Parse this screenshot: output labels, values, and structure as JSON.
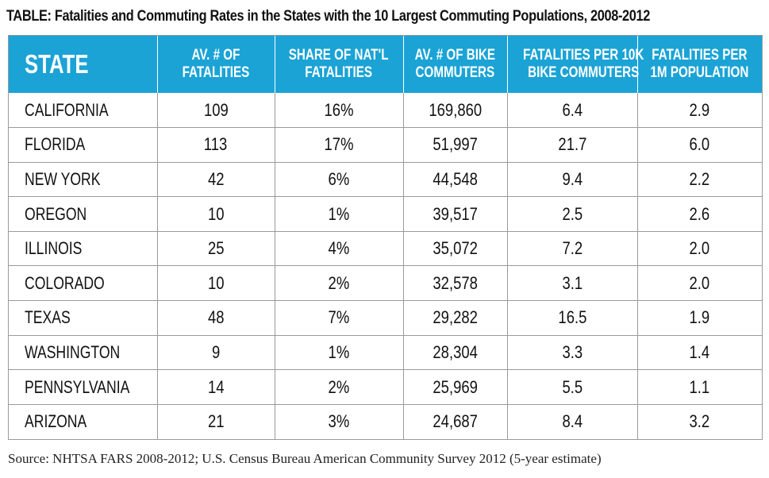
{
  "title": "TABLE: Fatalities and Commuting Rates in the States with the 10 Largest Commuting Populations, 2008-2012",
  "table": {
    "headers": [
      [
        "STATE"
      ],
      [
        "AV. # OF",
        "FATALITIES"
      ],
      [
        "SHARE OF NAT'L",
        "FATALITIES"
      ],
      [
        "AV. # OF BIKE",
        "COMMUTERS"
      ],
      [
        "FATALITIES PER 10K",
        "BIKE COMMUTERS"
      ],
      [
        "FATALITIES PER",
        "1M POPULATION"
      ]
    ],
    "rows": [
      [
        "CALIFORNIA",
        "109",
        "16%",
        "169,860",
        "6.4",
        "2.9"
      ],
      [
        "FLORIDA",
        "113",
        "17%",
        "51,997",
        "21.7",
        "6.0"
      ],
      [
        "NEW YORK",
        "42",
        "6%",
        "44,548",
        "9.4",
        "2.2"
      ],
      [
        "OREGON",
        "10",
        "1%",
        "39,517",
        "2.5",
        "2.6"
      ],
      [
        "ILLINOIS",
        "25",
        "4%",
        "35,072",
        "7.2",
        "2.0"
      ],
      [
        "COLORADO",
        "10",
        "2%",
        "32,578",
        "3.1",
        "2.0"
      ],
      [
        "TEXAS",
        "48",
        "7%",
        "29,282",
        "16.5",
        "1.9"
      ],
      [
        "WASHINGTON",
        "9",
        "1%",
        "28,304",
        "3.3",
        "1.4"
      ],
      [
        "PENNSYLVANIA",
        "14",
        "2%",
        "25,969",
        "5.5",
        "1.1"
      ],
      [
        "ARIZONA",
        "21",
        "3%",
        "24,687",
        "8.4",
        "3.2"
      ]
    ]
  },
  "source": "Source: NHTSA FARS 2008-2012; U.S. Census Bureau American Community Survey 2012 (5-year estimate)",
  "colors": {
    "header_bg": "#1ba3d6",
    "header_text": "#ffffff",
    "grid": "#9a9a9a"
  }
}
